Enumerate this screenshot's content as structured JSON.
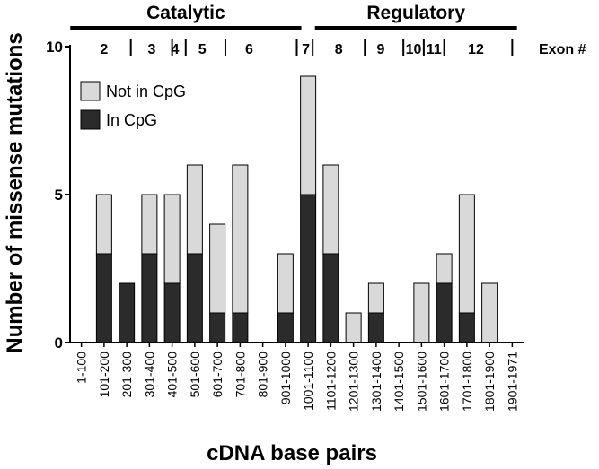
{
  "chart_data": {
    "type": "bar",
    "stacked": true,
    "title": "",
    "xlabel": "cDNA base pairs",
    "ylabel": "Number of missense mutations",
    "ylim": [
      0,
      10
    ],
    "yticks": [
      0,
      5,
      10
    ],
    "categories": [
      "1-100",
      "101-200",
      "201-300",
      "301-400",
      "401-500",
      "501-600",
      "601-700",
      "701-800",
      "801-900",
      "901-1000",
      "1001-1100",
      "1101-1200",
      "1201-1300",
      "1301-1400",
      "1401-1500",
      "1501-1600",
      "1601-1700",
      "1701-1800",
      "1801-1900",
      "1901-1971"
    ],
    "series": [
      {
        "name": "In CpG",
        "color": "#2b2b2b",
        "values": [
          0,
          3,
          2,
          3,
          2,
          3,
          1,
          1,
          0,
          1,
          5,
          3,
          0,
          1,
          0,
          0,
          2,
          1,
          0,
          0
        ]
      },
      {
        "name": "Not in CpG",
        "color": "#d9d9d9",
        "values": [
          0,
          2,
          0,
          2,
          3,
          3,
          3,
          5,
          0,
          2,
          4,
          3,
          1,
          1,
          0,
          2,
          1,
          4,
          2,
          0
        ]
      }
    ],
    "legend": {
      "position": "top-left",
      "order": [
        "Not in CpG",
        "In CpG"
      ]
    },
    "domains": [
      {
        "label": "Catalytic",
        "from_bp": 1,
        "to_bp": 1020
      },
      {
        "label": "Regulatory",
        "from_bp": 1080,
        "to_bp": 1971
      }
    ],
    "exon_label": "Exon #",
    "exons": [
      "2",
      "3",
      "4",
      "5",
      "6",
      "7",
      "8",
      "9",
      "10",
      "11",
      "12"
    ],
    "exon_center_bp": [
      150,
      360,
      463,
      583,
      790,
      1040,
      1185,
      1370,
      1515,
      1605,
      1790
    ],
    "exon_boundary_bp": [
      268,
      450,
      510,
      685,
      1000,
      1070,
      1300,
      1470,
      1560,
      1650,
      1950
    ]
  }
}
